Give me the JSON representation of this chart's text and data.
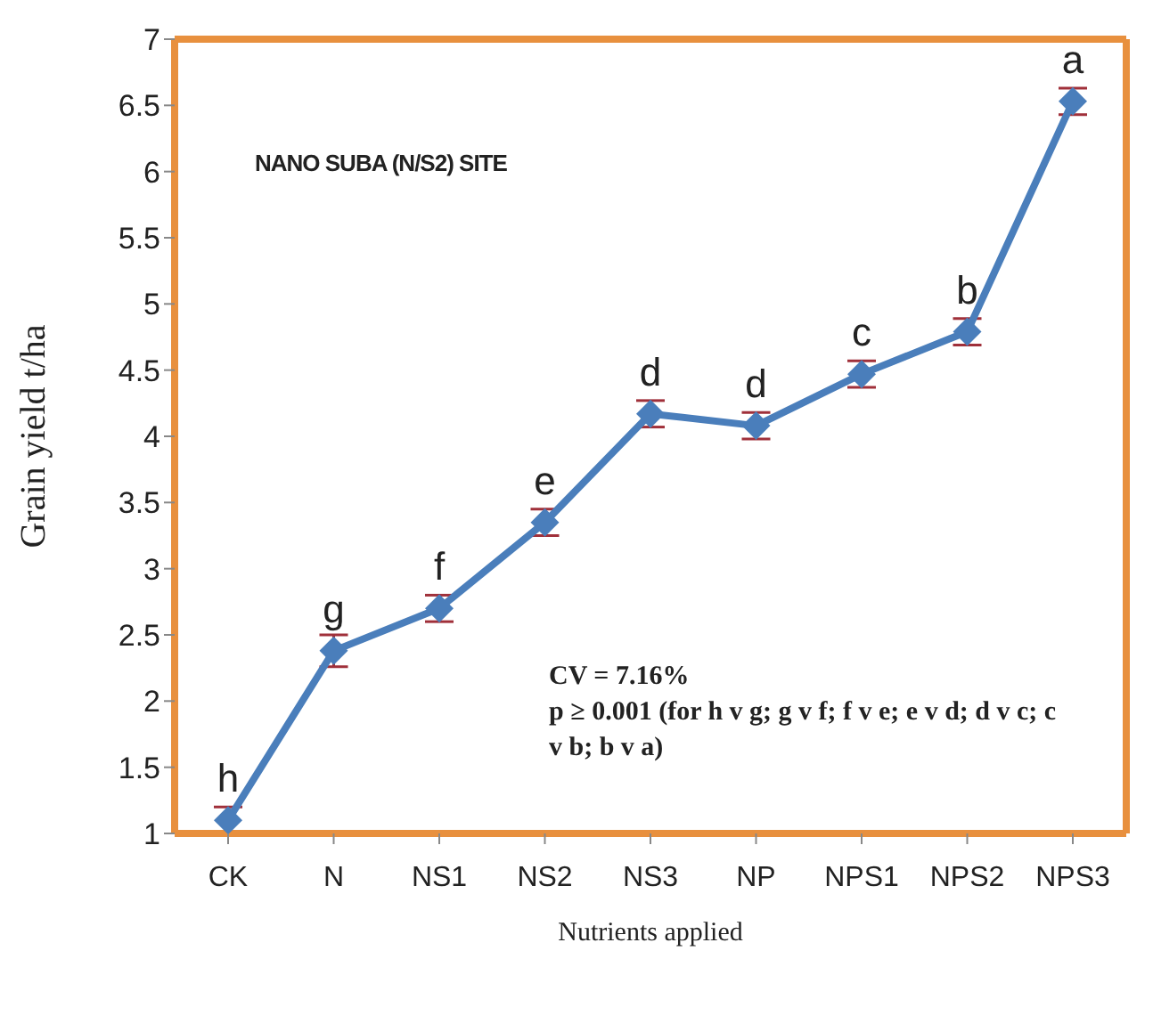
{
  "chart_data": {
    "type": "line",
    "xlabel": "Nutrients applied",
    "ylabel": "Grain yield t/ha",
    "categories": [
      "CK",
      "N",
      "NS1",
      "NS2",
      "NS3",
      "NP",
      "NPS1",
      "NPS2",
      "NPS3"
    ],
    "series": [
      {
        "color": "#4a7ebb",
        "values": [
          1.1,
          2.38,
          2.7,
          3.35,
          4.17,
          4.08,
          4.47,
          4.79,
          6.53
        ],
        "errors": [
          0.1,
          0.12,
          0.1,
          0.1,
          0.1,
          0.1,
          0.1,
          0.1,
          0.1
        ]
      }
    ],
    "ylim": [
      1,
      7
    ],
    "yticks": [
      1,
      1.5,
      2,
      2.5,
      3,
      3.5,
      4,
      4.5,
      5,
      5.5,
      6,
      6.5,
      7
    ],
    "grid": false,
    "marker": "diamond",
    "line_style": "solid",
    "annotations": [
      "NANO SUBA (N/S2) SITE",
      "CV = 7.16%",
      "p ≥ 0.001 (for h v g; g v f; f v e; e v d; d v c; c v b; b v a)",
      {
        "text": "h",
        "x": "CK",
        "y": 1.1
      },
      {
        "text": "g",
        "x": "N",
        "y": 2.38
      },
      {
        "text": "f",
        "x": "NS1",
        "y": 2.7
      },
      {
        "text": "e",
        "x": "NS2",
        "y": 3.35
      },
      {
        "text": "d",
        "x": "NS3",
        "y": 4.17
      },
      {
        "text": "d",
        "x": "NP",
        "y": 4.08
      },
      {
        "text": "c",
        "x": "NPS1",
        "y": 4.47
      },
      {
        "text": "b",
        "x": "NPS2",
        "y": 4.79
      },
      {
        "text": "a",
        "x": "NPS3",
        "y": 6.53
      }
    ]
  }
}
